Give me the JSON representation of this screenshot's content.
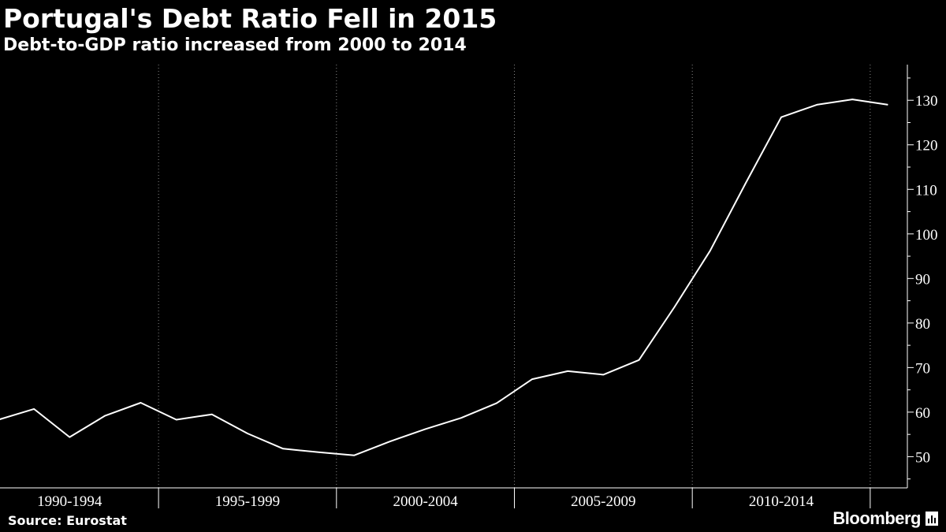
{
  "title": "Portugal's Debt Ratio Fell in 2015",
  "subtitle": "Debt-to-GDP ratio increased from 2000 to 2014",
  "source": "Source: Eurostat",
  "brand": "Bloomberg",
  "colors": {
    "background": "#000000",
    "line": "#ffffff",
    "grid": "#888888"
  },
  "chart_data": {
    "type": "line",
    "title": "Portugal's Debt Ratio Fell in 2015",
    "subtitle": "Debt-to-GDP ratio increased from 2000 to 2014",
    "xlabel": "",
    "ylabel": "",
    "x": [
      1990,
      1991,
      1992,
      1993,
      1994,
      1995,
      1996,
      1997,
      1998,
      1999,
      2000,
      2001,
      2002,
      2003,
      2004,
      2005,
      2006,
      2007,
      2008,
      2009,
      2010,
      2011,
      2012,
      2013,
      2014,
      2015
    ],
    "series": [
      {
        "values": [
          58.3,
          60.7,
          54.4,
          59.2,
          62.1,
          58.3,
          59.5,
          55.2,
          51.8,
          51.0,
          50.3,
          53.4,
          56.2,
          58.7,
          62.0,
          67.4,
          69.2,
          68.4,
          71.7,
          83.6,
          96.2,
          111.4,
          126.2,
          129.0,
          130.2,
          129.0
        ]
      }
    ],
    "x_tick_labels": [
      "1990-1994",
      "1995-1999",
      "2000-2004",
      "2005-2009",
      "2010-2014"
    ],
    "y_ticks": [
      50,
      60,
      70,
      80,
      90,
      100,
      110,
      120,
      130
    ],
    "ylim": [
      43,
      138
    ],
    "xlim": [
      1990,
      2015.5
    ],
    "y_axis_side": "right",
    "grid": true
  }
}
